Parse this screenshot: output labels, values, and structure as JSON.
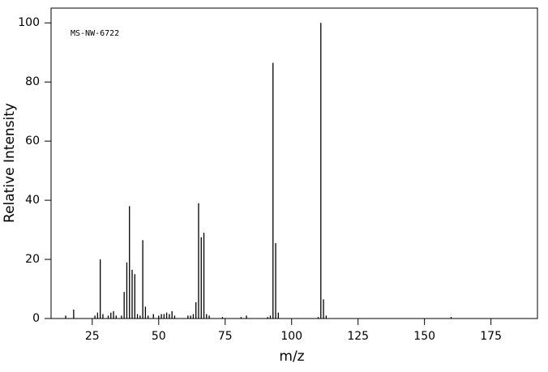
{
  "chart_data": {
    "type": "stem",
    "annotation": "MS-NW-6722",
    "x_label": "m/z",
    "y_label": "Relative Intensity",
    "x": [
      15,
      18,
      26,
      27,
      28,
      29,
      31,
      32,
      33,
      34,
      36,
      37,
      38,
      39,
      40,
      41,
      42,
      43,
      44,
      45,
      46,
      48,
      50,
      51,
      52,
      53,
      54,
      55,
      56,
      61,
      62,
      63,
      64,
      65,
      66,
      67,
      68,
      69,
      74,
      81,
      83,
      91,
      92,
      93,
      94,
      95,
      110,
      111,
      112,
      113,
      160
    ],
    "values": [
      1,
      3,
      1,
      2,
      20,
      1.5,
      1,
      2,
      2.5,
      1,
      1,
      9,
      19,
      38,
      16.5,
      15,
      1.5,
      1,
      26.5,
      4,
      1,
      1.5,
      1,
      1.5,
      1.5,
      2,
      1.5,
      2.5,
      1,
      1,
      1,
      1.5,
      5.5,
      39,
      27.5,
      29,
      1.5,
      1,
      0.5,
      0.5,
      1,
      0.5,
      1,
      86.5,
      25.5,
      2,
      0.5,
      100,
      6.5,
      1,
      0.5
    ],
    "color": "#000000",
    "xlim": [
      9.5,
      192.5
    ],
    "xticks": [
      25,
      50,
      75,
      100,
      125,
      150,
      175
    ],
    "ylim": [
      0,
      105
    ],
    "yticks": [
      0,
      20,
      40,
      60,
      80,
      100
    ]
  }
}
